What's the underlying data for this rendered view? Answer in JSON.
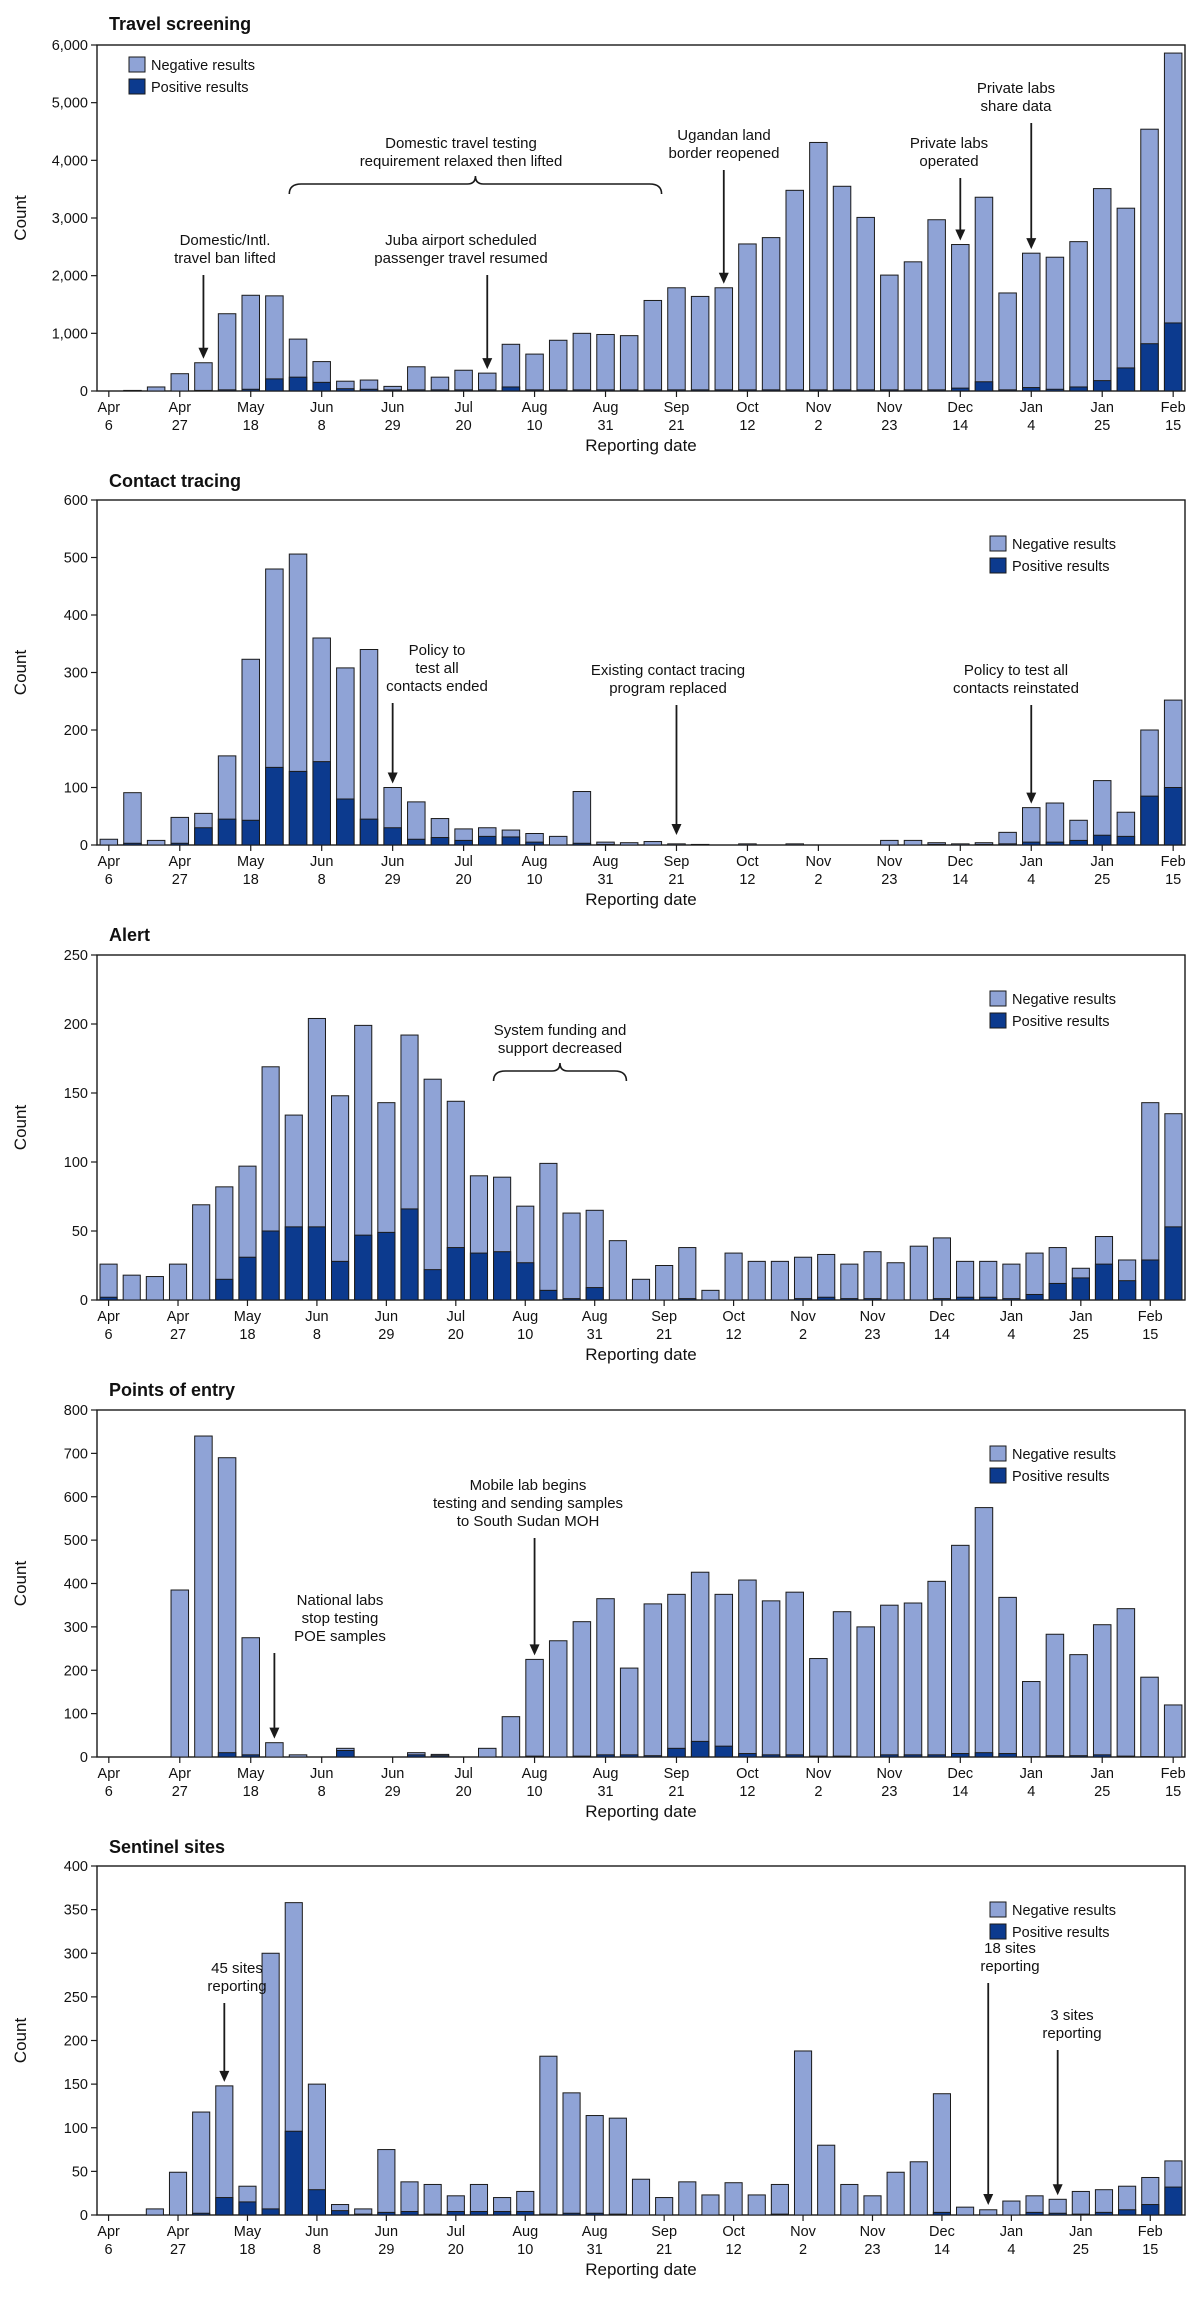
{
  "colors": {
    "negative": "#8fa3d6",
    "positive": "#0c3a8e",
    "outline": "#1a1a1a"
  },
  "chart_data": [
    {
      "type": "bar",
      "title": "Travel screening",
      "xlabel": "Reporting date",
      "ylabel": "Count",
      "ylim": [
        0,
        6000
      ],
      "yticks": [
        "0",
        "1,000",
        "2,000",
        "3,000",
        "4,000",
        "5,000",
        "6,000"
      ],
      "yticks_values": [
        0,
        1000,
        2000,
        3000,
        4000,
        5000,
        6000
      ],
      "x_tick_labels": [
        [
          "Apr",
          "6"
        ],
        [
          "Apr",
          "27"
        ],
        [
          "May",
          "18"
        ],
        [
          "Jun",
          "8"
        ],
        [
          "Jun",
          "29"
        ],
        [
          "Jul",
          "20"
        ],
        [
          "Aug",
          "10"
        ],
        [
          "Aug",
          "31"
        ],
        [
          "Sep",
          "21"
        ],
        [
          "Oct",
          "12"
        ],
        [
          "Nov",
          "2"
        ],
        [
          "Nov",
          "23"
        ],
        [
          "Dec",
          "14"
        ],
        [
          "Jan",
          "4"
        ],
        [
          "Jan",
          "25"
        ],
        [
          "Feb",
          "15"
        ]
      ],
      "legend": {
        "position": "top-left",
        "entries": [
          "Negative results",
          "Positive results"
        ]
      },
      "series": [
        {
          "name": "Negative results",
          "values": [
            0,
            10,
            70,
            300,
            480,
            1320,
            1630,
            1440,
            660,
            360,
            130,
            160,
            60,
            400,
            220,
            340,
            290,
            740,
            620,
            860,
            980,
            960,
            940,
            1550,
            1770,
            1620,
            1770,
            2530,
            2640,
            3460,
            4290,
            3530,
            2990,
            1990,
            2220,
            2950,
            2490,
            3200,
            1680,
            2330,
            2290,
            2520,
            3330,
            2770,
            3720,
            4680
          ]
        },
        {
          "name": "Positive results",
          "values": [
            0,
            0,
            0,
            0,
            10,
            20,
            30,
            210,
            240,
            150,
            40,
            30,
            20,
            20,
            20,
            20,
            20,
            70,
            20,
            20,
            20,
            20,
            20,
            20,
            20,
            20,
            20,
            20,
            20,
            20,
            20,
            20,
            20,
            20,
            20,
            20,
            50,
            160,
            20,
            60,
            30,
            70,
            180,
            400,
            820,
            1180
          ]
        }
      ],
      "annotations": [
        {
          "text": [
            "Domestic/Intl.",
            "travel ban lifted"
          ],
          "arrow_bar": 4
        },
        {
          "text": [
            "Juba airport scheduled",
            "passenger travel resumed"
          ],
          "arrow_bar": 16
        },
        {
          "text": [
            "Domestic travel testing",
            "requirement relaxed then lifted"
          ],
          "bracket": [
            8,
            23
          ]
        },
        {
          "text": [
            "Ugandan land",
            "border reopened"
          ],
          "arrow_bar": 26
        },
        {
          "text": [
            "Private labs",
            "operated"
          ],
          "arrow_bar": 36
        },
        {
          "text": [
            "Private labs",
            "share data"
          ],
          "arrow_bar": 39
        }
      ]
    },
    {
      "type": "bar",
      "title": "Contact tracing",
      "xlabel": "Reporting date",
      "ylabel": "Count",
      "ylim": [
        0,
        600
      ],
      "yticks": [
        "0",
        "100",
        "200",
        "300",
        "400",
        "500",
        "600"
      ],
      "yticks_values": [
        0,
        100,
        200,
        300,
        400,
        500,
        600
      ],
      "x_tick_labels": [
        [
          "Apr",
          "6"
        ],
        [
          "Apr",
          "27"
        ],
        [
          "May",
          "18"
        ],
        [
          "Jun",
          "8"
        ],
        [
          "Jun",
          "29"
        ],
        [
          "Jul",
          "20"
        ],
        [
          "Aug",
          "10"
        ],
        [
          "Aug",
          "31"
        ],
        [
          "Sep",
          "21"
        ],
        [
          "Oct",
          "12"
        ],
        [
          "Nov",
          "2"
        ],
        [
          "Nov",
          "23"
        ],
        [
          "Dec",
          "14"
        ],
        [
          "Jan",
          "4"
        ],
        [
          "Jan",
          "25"
        ],
        [
          "Feb",
          "15"
        ]
      ],
      "legend": {
        "position": "top-right",
        "entries": [
          "Negative results",
          "Positive results"
        ]
      },
      "series": [
        {
          "name": "Negative results",
          "values": [
            10,
            88,
            8,
            45,
            25,
            110,
            280,
            345,
            378,
            215,
            228,
            295,
            70,
            65,
            33,
            20,
            15,
            12,
            15,
            15,
            90,
            4,
            4,
            6,
            2,
            1,
            0,
            2,
            0,
            2,
            0,
            0,
            0,
            8,
            8,
            3,
            2,
            3,
            20,
            60,
            68,
            35,
            95,
            42,
            115,
            152
          ]
        },
        {
          "name": "Positive results",
          "values": [
            0,
            3,
            0,
            3,
            30,
            45,
            43,
            135,
            128,
            145,
            80,
            45,
            30,
            10,
            13,
            8,
            15,
            14,
            5,
            0,
            3,
            1,
            0,
            0,
            0,
            0,
            0,
            0,
            0,
            0,
            0,
            0,
            0,
            0,
            0,
            1,
            0,
            1,
            2,
            5,
            5,
            8,
            17,
            15,
            85,
            100
          ]
        }
      ],
      "annotations": [
        {
          "text": [
            "Policy to",
            "test all",
            "contacts ended"
          ],
          "arrow_bar": 12
        },
        {
          "text": [
            "Existing contact tracing",
            "program replaced"
          ],
          "arrow_bar": 24
        },
        {
          "text": [
            "Policy to test all",
            "contacts reinstated"
          ],
          "arrow_bar": 39
        }
      ]
    },
    {
      "type": "bar",
      "title": "Alert",
      "xlabel": "Reporting date",
      "ylabel": "Count",
      "ylim": [
        0,
        250
      ],
      "yticks": [
        "0",
        "50",
        "100",
        "150",
        "200",
        "250"
      ],
      "yticks_values": [
        0,
        50,
        100,
        150,
        200,
        250
      ],
      "x_tick_labels": [
        [
          "Apr",
          "6"
        ],
        [
          "Apr",
          "27"
        ],
        [
          "May",
          "18"
        ],
        [
          "Jun",
          "8"
        ],
        [
          "Jun",
          "29"
        ],
        [
          "Jul",
          "20"
        ],
        [
          "Aug",
          "10"
        ],
        [
          "Aug",
          "31"
        ],
        [
          "Sep",
          "21"
        ],
        [
          "Oct",
          "12"
        ],
        [
          "Nov",
          "2"
        ],
        [
          "Nov",
          "23"
        ],
        [
          "Dec",
          "14"
        ],
        [
          "Jan",
          "4"
        ],
        [
          "Jan",
          "25"
        ],
        [
          "Feb",
          "15"
        ]
      ],
      "legend": {
        "position": "top-right",
        "entries": [
          "Negative results",
          "Positive results"
        ]
      },
      "series": [
        {
          "name": "Negative results",
          "values": [
            24,
            18,
            17,
            26,
            69,
            67,
            66,
            119,
            81,
            151,
            120,
            152,
            94,
            126,
            138,
            106,
            56,
            54,
            41,
            92,
            62,
            56,
            43,
            15,
            25,
            37,
            7,
            34,
            28,
            28,
            30,
            31,
            25,
            34,
            27,
            39,
            44,
            26,
            26,
            25,
            30,
            26,
            7,
            20,
            15,
            114,
            82
          ]
        },
        {
          "name": "Positive results",
          "values": [
            2,
            0,
            0,
            0,
            0,
            15,
            31,
            50,
            53,
            53,
            28,
            47,
            49,
            66,
            22,
            38,
            34,
            35,
            27,
            7,
            1,
            9,
            0,
            0,
            0,
            1,
            0,
            0,
            0,
            0,
            1,
            2,
            1,
            1,
            0,
            0,
            1,
            2,
            2,
            1,
            4,
            12,
            16,
            26,
            14,
            29,
            53
          ]
        }
      ],
      "annotations": [
        {
          "text": [
            "System funding and",
            "support decreased"
          ],
          "bracket": [
            17,
            22
          ]
        }
      ]
    },
    {
      "type": "bar",
      "title": "Points of entry",
      "xlabel": "Reporting date",
      "ylabel": "Count",
      "ylim": [
        0,
        800
      ],
      "yticks": [
        "0",
        "100",
        "200",
        "300",
        "400",
        "500",
        "600",
        "700",
        "800"
      ],
      "yticks_values": [
        0,
        100,
        200,
        300,
        400,
        500,
        600,
        700,
        800
      ],
      "x_tick_labels": [
        [
          "Apr",
          "6"
        ],
        [
          "Apr",
          "27"
        ],
        [
          "May",
          "18"
        ],
        [
          "Jun",
          "8"
        ],
        [
          "Jun",
          "29"
        ],
        [
          "Jul",
          "20"
        ],
        [
          "Aug",
          "10"
        ],
        [
          "Aug",
          "31"
        ],
        [
          "Sep",
          "21"
        ],
        [
          "Oct",
          "12"
        ],
        [
          "Nov",
          "2"
        ],
        [
          "Nov",
          "23"
        ],
        [
          "Dec",
          "14"
        ],
        [
          "Jan",
          "4"
        ],
        [
          "Jan",
          "25"
        ],
        [
          "Feb",
          "15"
        ]
      ],
      "legend": {
        "position": "top-right",
        "entries": [
          "Negative results",
          "Positive results"
        ]
      },
      "series": [
        {
          "name": "Negative results",
          "values": [
            0,
            0,
            0,
            385,
            740,
            680,
            270,
            33,
            5,
            0,
            5,
            0,
            0,
            5,
            3,
            0,
            20,
            93,
            223,
            268,
            310,
            360,
            200,
            350,
            355,
            390,
            350,
            400,
            355,
            375,
            225,
            333,
            300,
            345,
            350,
            400,
            480,
            565,
            360,
            173,
            280,
            233,
            300,
            340,
            183,
            120
          ]
        },
        {
          "name": "Positive results",
          "values": [
            0,
            0,
            0,
            0,
            0,
            10,
            5,
            0,
            0,
            0,
            15,
            0,
            0,
            5,
            3,
            0,
            0,
            0,
            2,
            0,
            2,
            5,
            5,
            3,
            20,
            36,
            25,
            8,
            5,
            5,
            2,
            2,
            0,
            5,
            5,
            5,
            8,
            10,
            8,
            1,
            3,
            3,
            5,
            2,
            1,
            0
          ]
        }
      ],
      "annotations": [
        {
          "text": [
            "National labs",
            "stop testing",
            "POE samples"
          ],
          "arrow_bar": 7
        },
        {
          "text": [
            "Mobile lab begins",
            "testing and sending samples",
            "to South Sudan MOH"
          ],
          "arrow_bar": 18
        }
      ]
    },
    {
      "type": "bar",
      "title": "Sentinel sites",
      "xlabel": "Reporting date",
      "ylabel": "Count",
      "ylim": [
        0,
        400
      ],
      "yticks": [
        "0",
        "50",
        "100",
        "150",
        "200",
        "250",
        "300",
        "350",
        "400"
      ],
      "yticks_values": [
        0,
        50,
        100,
        150,
        200,
        250,
        300,
        350,
        400
      ],
      "x_tick_labels": [
        [
          "Apr",
          "6"
        ],
        [
          "Apr",
          "27"
        ],
        [
          "May",
          "18"
        ],
        [
          "Jun",
          "8"
        ],
        [
          "Jun",
          "29"
        ],
        [
          "Jul",
          "20"
        ],
        [
          "Aug",
          "10"
        ],
        [
          "Aug",
          "31"
        ],
        [
          "Sep",
          "21"
        ],
        [
          "Oct",
          "12"
        ],
        [
          "Nov",
          "2"
        ],
        [
          "Nov",
          "23"
        ],
        [
          "Dec",
          "14"
        ],
        [
          "Jan",
          "4"
        ],
        [
          "Jan",
          "25"
        ],
        [
          "Feb",
          "15"
        ]
      ],
      "legend": {
        "position": "top-right",
        "entries": [
          "Negative results",
          "Positive results"
        ]
      },
      "series": [
        {
          "name": "Negative results",
          "values": [
            0,
            0,
            7,
            49,
            116,
            128,
            18,
            293,
            262,
            121,
            7,
            6,
            72,
            34,
            34,
            18,
            31,
            16,
            23,
            181,
            138,
            112,
            110,
            41,
            20,
            38,
            23,
            37,
            23,
            34,
            188,
            80,
            35,
            22,
            49,
            61,
            136,
            9,
            6,
            16,
            19,
            16,
            26,
            26,
            27,
            31,
            30
          ]
        },
        {
          "name": "Positive results",
          "values": [
            0,
            0,
            0,
            0,
            2,
            20,
            15,
            7,
            96,
            29,
            5,
            1,
            3,
            4,
            1,
            4,
            4,
            4,
            4,
            1,
            2,
            2,
            1,
            0,
            0,
            0,
            0,
            0,
            0,
            1,
            0,
            0,
            0,
            0,
            0,
            0,
            3,
            0,
            0,
            0,
            3,
            2,
            1,
            3,
            6,
            12,
            32
          ]
        }
      ],
      "annotations": [
        {
          "text": [
            "45 sites",
            "reporting"
          ],
          "arrow_bar": 5
        },
        {
          "text": [
            "18 sites",
            "reporting"
          ],
          "arrow_bar": 38
        },
        {
          "text": [
            "3 sites",
            "reporting"
          ],
          "arrow_bar": 41
        }
      ]
    }
  ]
}
